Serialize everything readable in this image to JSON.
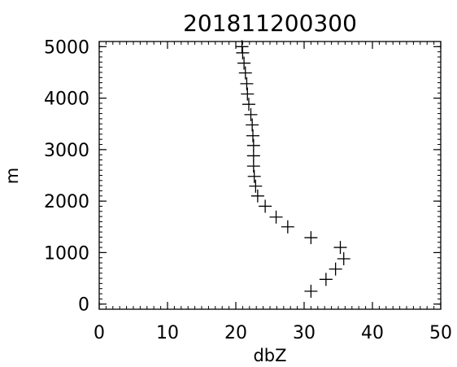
{
  "chart_data": {
    "type": "scatter",
    "title": "201811200300",
    "xlabel": "dbZ",
    "ylabel": "m",
    "xlim": [
      0,
      50
    ],
    "ylim": [
      -100,
      5100
    ],
    "x_ticks": [
      "0",
      "10",
      "20",
      "30",
      "40",
      "50"
    ],
    "y_ticks": [
      "0",
      "1000",
      "2000",
      "3000",
      "4000",
      "5000"
    ],
    "x_tick_values": [
      0,
      10,
      20,
      30,
      40,
      50
    ],
    "y_tick_values": [
      0,
      1000,
      2000,
      3000,
      4000,
      5000
    ],
    "grid": false,
    "marker": "plus",
    "color": "#000000",
    "series": [
      {
        "points": [
          [
            31.0,
            250
          ],
          [
            33.2,
            480
          ],
          [
            34.6,
            680
          ],
          [
            35.8,
            880
          ],
          [
            35.3,
            1100
          ],
          [
            31.0,
            1290
          ],
          [
            27.6,
            1500
          ],
          [
            25.9,
            1690
          ],
          [
            24.3,
            1900
          ],
          [
            23.2,
            2100
          ],
          [
            22.9,
            2290
          ],
          [
            22.7,
            2480
          ],
          [
            22.6,
            2680
          ],
          [
            22.6,
            2880
          ],
          [
            22.6,
            3080
          ],
          [
            22.5,
            3270
          ],
          [
            22.4,
            3480
          ],
          [
            22.2,
            3680
          ],
          [
            21.9,
            3880
          ],
          [
            21.7,
            4080
          ],
          [
            21.6,
            4280
          ],
          [
            21.4,
            4490
          ],
          [
            21.2,
            4680
          ],
          [
            21.0,
            4880
          ],
          [
            20.9,
            5000
          ]
        ]
      }
    ]
  }
}
